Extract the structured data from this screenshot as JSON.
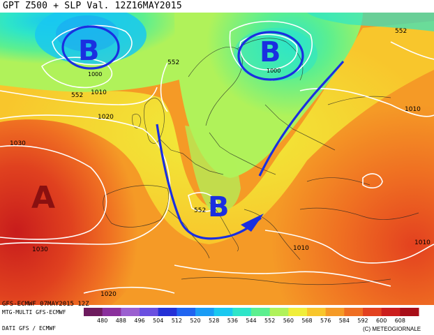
{
  "title": "GPT Z500 + SLP Val. 12Z16MAY2015",
  "run_info": "GFS-ECMWF 07MAY2015 12Z",
  "model_line": "MTG-MULTI GFS-ECMWF",
  "data_source": "DATI GFS / ECMWF",
  "copyright": "(C) METEOGIORNALE",
  "colorbar": {
    "labels": [
      "480",
      "488",
      "496",
      "504",
      "512",
      "520",
      "528",
      "536",
      "544",
      "552",
      "560",
      "568",
      "576",
      "584",
      "592",
      "600",
      "608"
    ],
    "colors": [
      "#6d1b5e",
      "#8a2f9c",
      "#9b5fd0",
      "#6a4fe0",
      "#2430d6",
      "#1f64f0",
      "#1a9cf5",
      "#19c8f0",
      "#2ee5c8",
      "#5cef8f",
      "#b0f25a",
      "#f0ee3a",
      "#f8c62c",
      "#f59a26",
      "#ef6e22",
      "#e3411f",
      "#cc1d1c",
      "#a80e18"
    ]
  },
  "pressure_centers": [
    {
      "label": "B",
      "value": "1000",
      "type": "low"
    },
    {
      "label": "B",
      "value": "1000",
      "type": "low"
    },
    {
      "label": "B",
      "type": "low"
    },
    {
      "label": "A",
      "type": "high"
    }
  ],
  "isobar_labels": [
    "1030",
    "1030",
    "1020",
    "1020",
    "1010",
    "1010",
    "1010",
    "1010"
  ],
  "geopotential_labels": [
    "552",
    "552",
    "552",
    "552"
  ],
  "colors": {
    "annotation_blue": "#1a2fe0",
    "high_label": "#8a1010",
    "isobar": "#ffffff"
  }
}
